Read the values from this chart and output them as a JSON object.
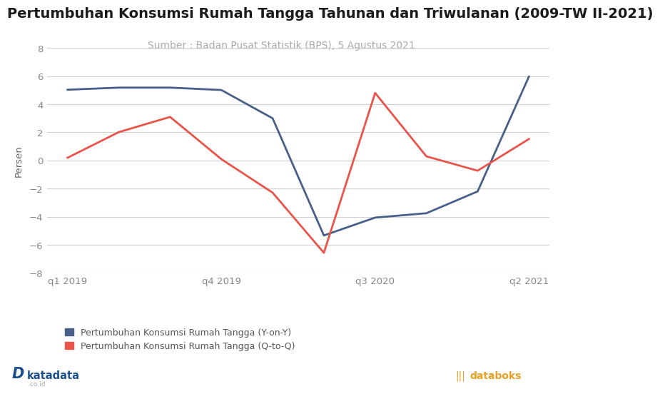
{
  "title": "Pertumbuhan Konsumsi Rumah Tangga Tahunan dan Triwulanan (2009-TW II-2021)",
  "subtitle": "Sumber : Badan Pusat Statistik (BPS), 5 Agustus 2021",
  "ylabel": "Persen",
  "ylim": [
    -8,
    8
  ],
  "yticks": [
    -8,
    -6,
    -4,
    -2,
    0,
    2,
    4,
    6,
    8
  ],
  "xlim": [
    -0.4,
    9.4
  ],
  "xtick_positions": [
    0,
    3,
    6,
    9
  ],
  "xtick_labels": [
    "q1 2019",
    "q4 2019",
    "q3 2020",
    "q2 2021"
  ],
  "yoy": [
    5.03,
    5.18,
    5.18,
    5.01,
    3.0,
    -5.32,
    -4.05,
    -3.74,
    -2.19,
    5.96
  ],
  "qtq": [
    0.2,
    2.02,
    3.1,
    0.1,
    -2.28,
    -6.55,
    4.8,
    0.3,
    -0.72,
    1.53
  ],
  "yoy_color": "#485f8a",
  "qtq_color": "#E8534A",
  "bg_color": "#ffffff",
  "grid_color": "#d0d0d0",
  "title_fontsize": 14,
  "subtitle_fontsize": 10,
  "legend_yoy": "Pertumbuhan Konsumsi Rumah Tangga (Y-on-Y)",
  "legend_qtq": "Pertumbuhan Konsumsi Rumah Tangga (Q-to-Q)",
  "title_color": "#1a1a1a",
  "subtitle_color": "#aaaaaa",
  "ylabel_color": "#666666",
  "tick_color": "#888888",
  "katadata_D_color": "#1B4F8A",
  "katadata_text_color": "#1B4F8A",
  "katadata_co_color": "#aaaaaa",
  "databoks_color": "#E8A020",
  "legend_text_color": "#555555",
  "line_width": 2.0
}
